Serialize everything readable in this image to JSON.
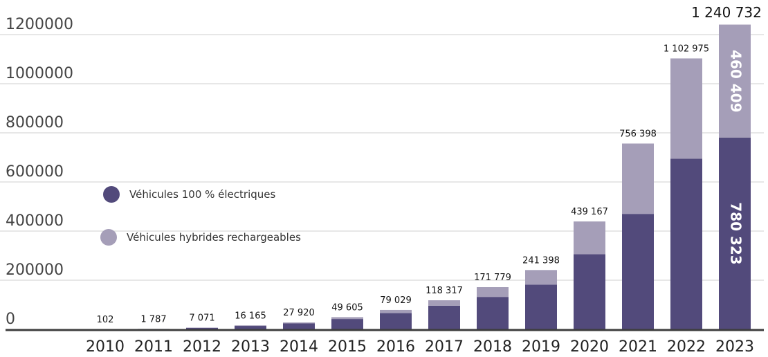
{
  "chart_data": {
    "type": "bar",
    "stacked": true,
    "categories": [
      "2010",
      "2011",
      "2012",
      "2013",
      "2014",
      "2015",
      "2016",
      "2017",
      "2018",
      "2019",
      "2020",
      "2021",
      "2022",
      "2023"
    ],
    "series": [
      {
        "name": "Véhicules 100 % électriques",
        "color": "#524a7b",
        "values": [
          80,
          1500,
          6000,
          14000,
          24000,
          42000,
          66000,
          96000,
          132000,
          182000,
          306000,
          470000,
          695000,
          780323
        ]
      },
      {
        "name": "Véhicules hybrides rechargeables",
        "color": "#a59eb8",
        "values": [
          22,
          287,
          1071,
          2165,
          3920,
          7605,
          13029,
          22317,
          39779,
          59398,
          133167,
          286398,
          407975,
          460409
        ]
      }
    ],
    "totals_labels": [
      "102",
      "1 787",
      "7 071",
      "16 165",
      "27 920",
      "49 605",
      "79 029",
      "118 317",
      "171 779",
      "241 398",
      "439 167",
      "756 398",
      "1 102 975",
      "1 240 732"
    ],
    "inner_labels_2023": {
      "electric": "780 323",
      "hybrid": "460 409"
    },
    "y_ticks": [
      "0",
      "200000",
      "400000",
      "600000",
      "800000",
      "1000000",
      "1200000"
    ],
    "y_tick_values": [
      0,
      200000,
      400000,
      600000,
      800000,
      1000000,
      1200000
    ],
    "ylim": [
      0,
      1200000
    ],
    "grid": true,
    "legend_position": "left-middle",
    "title": "",
    "xlabel": "",
    "ylabel": ""
  }
}
